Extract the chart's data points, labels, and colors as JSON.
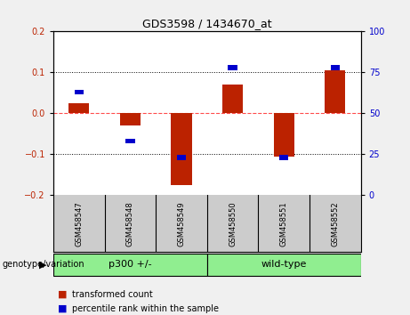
{
  "title": "GDS3598 / 1434670_at",
  "samples": [
    "GSM458547",
    "GSM458548",
    "GSM458549",
    "GSM458550",
    "GSM458551",
    "GSM458552"
  ],
  "red_values": [
    0.025,
    -0.03,
    -0.175,
    0.07,
    -0.105,
    0.105
  ],
  "blue_values_pct": [
    63,
    33,
    23,
    78,
    23,
    78
  ],
  "ylim_left": [
    -0.2,
    0.2
  ],
  "ylim_right": [
    0,
    100
  ],
  "yticks_left": [
    -0.2,
    -0.1,
    0.0,
    0.1,
    0.2
  ],
  "yticks_right": [
    0,
    25,
    50,
    75,
    100
  ],
  "hlines_dotted": [
    0.1,
    -0.1
  ],
  "hline_dashed": 0.0,
  "red_color": "#bb2200",
  "blue_color": "#0000cc",
  "bar_width": 0.4,
  "blue_bar_width": 0.18,
  "blue_bar_height": 0.012,
  "legend_labels": [
    "transformed count",
    "percentile rank within the sample"
  ],
  "bg_color": "#f0f0f0",
  "plot_bg": "#ffffff",
  "sample_bg": "#cccccc",
  "group_color": "#90ee90",
  "group1_label": "p300 +/-",
  "group2_label": "wild-type",
  "group_prefix": "genotype/variation"
}
